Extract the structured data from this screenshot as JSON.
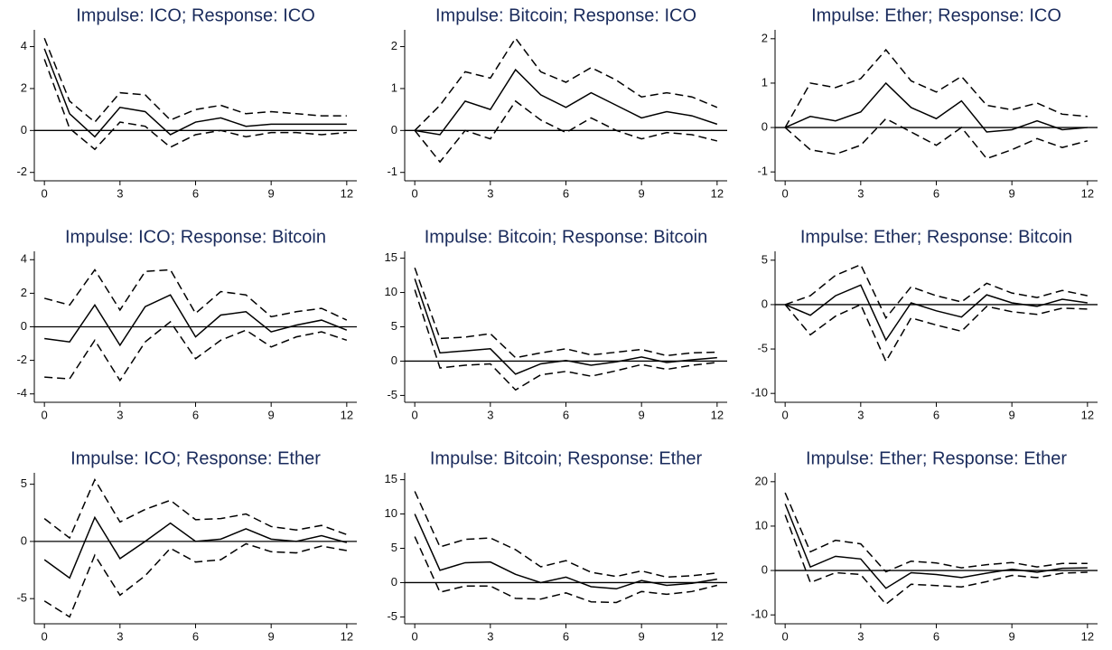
{
  "chart_data": [
    {
      "type": "line",
      "title": "Impulse: ICO; Response: ICO",
      "x": [
        0,
        1,
        2,
        3,
        4,
        5,
        6,
        7,
        8,
        9,
        10,
        11,
        12
      ],
      "xlim": [
        -0.4,
        12.4
      ],
      "xticks": [
        0,
        3,
        6,
        9,
        12
      ],
      "ylim": [
        -2.4,
        4.8
      ],
      "yticks": [
        -2,
        0,
        2,
        4
      ],
      "reference_line": 0,
      "series": [
        {
          "style": "solid",
          "color": "#000000",
          "values": [
            3.9,
            0.8,
            -0.3,
            1.1,
            0.9,
            -0.2,
            0.4,
            0.6,
            0.2,
            0.3,
            0.3,
            0.3,
            0.3
          ]
        },
        {
          "style": "dashed",
          "color": "#000000",
          "values": [
            4.4,
            1.4,
            0.4,
            1.8,
            1.7,
            0.5,
            1.0,
            1.2,
            0.8,
            0.9,
            0.8,
            0.7,
            0.7
          ]
        },
        {
          "style": "dashed",
          "color": "#000000",
          "values": [
            3.4,
            0.1,
            -0.9,
            0.4,
            0.2,
            -0.8,
            -0.2,
            0.0,
            -0.3,
            -0.1,
            -0.1,
            -0.2,
            -0.1
          ]
        }
      ]
    },
    {
      "type": "line",
      "title": "Impulse: Bitcoin; Response: ICO",
      "x": [
        0,
        1,
        2,
        3,
        4,
        5,
        6,
        7,
        8,
        9,
        10,
        11,
        12
      ],
      "xlim": [
        -0.4,
        12.4
      ],
      "xticks": [
        0,
        3,
        6,
        9,
        12
      ],
      "ylim": [
        -1.2,
        2.4
      ],
      "yticks": [
        -1,
        0,
        1,
        2
      ],
      "reference_line": 0,
      "series": [
        {
          "style": "solid",
          "color": "#000000",
          "values": [
            0,
            -0.1,
            0.7,
            0.5,
            1.45,
            0.85,
            0.55,
            0.9,
            0.6,
            0.3,
            0.45,
            0.35,
            0.15
          ]
        },
        {
          "style": "dashed",
          "color": "#000000",
          "values": [
            0,
            0.6,
            1.4,
            1.25,
            2.2,
            1.4,
            1.15,
            1.5,
            1.2,
            0.8,
            0.9,
            0.8,
            0.55
          ]
        },
        {
          "style": "dashed",
          "color": "#000000",
          "values": [
            0,
            -0.75,
            0.0,
            -0.2,
            0.7,
            0.25,
            -0.05,
            0.3,
            0.0,
            -0.2,
            -0.05,
            -0.1,
            -0.25
          ]
        }
      ]
    },
    {
      "type": "line",
      "title": "Impulse: Ether; Response: ICO",
      "x": [
        0,
        1,
        2,
        3,
        4,
        5,
        6,
        7,
        8,
        9,
        10,
        11,
        12
      ],
      "xlim": [
        -0.4,
        12.4
      ],
      "xticks": [
        0,
        3,
        6,
        9,
        12
      ],
      "ylim": [
        -1.2,
        2.2
      ],
      "yticks": [
        -1,
        0,
        1,
        2
      ],
      "reference_line": 0,
      "series": [
        {
          "style": "solid",
          "color": "#000000",
          "values": [
            0,
            0.25,
            0.15,
            0.35,
            1.0,
            0.45,
            0.2,
            0.6,
            -0.1,
            -0.05,
            0.15,
            -0.05,
            0.0
          ]
        },
        {
          "style": "dashed",
          "color": "#000000",
          "values": [
            0,
            1.0,
            0.9,
            1.1,
            1.75,
            1.05,
            0.8,
            1.15,
            0.5,
            0.4,
            0.55,
            0.3,
            0.25
          ]
        },
        {
          "style": "dashed",
          "color": "#000000",
          "values": [
            0,
            -0.5,
            -0.6,
            -0.4,
            0.2,
            -0.1,
            -0.4,
            0.0,
            -0.7,
            -0.5,
            -0.25,
            -0.45,
            -0.3
          ]
        }
      ]
    },
    {
      "type": "line",
      "title": "Impulse: ICO; Response: Bitcoin",
      "x": [
        0,
        1,
        2,
        3,
        4,
        5,
        6,
        7,
        8,
        9,
        10,
        11,
        12
      ],
      "xlim": [
        -0.4,
        12.4
      ],
      "xticks": [
        0,
        3,
        6,
        9,
        12
      ],
      "ylim": [
        -4.5,
        4.5
      ],
      "yticks": [
        -4,
        -2,
        0,
        2,
        4
      ],
      "reference_line": 0,
      "series": [
        {
          "style": "solid",
          "color": "#000000",
          "values": [
            -0.7,
            -0.9,
            1.3,
            -1.1,
            1.2,
            1.9,
            -0.6,
            0.7,
            0.9,
            -0.3,
            0.1,
            0.4,
            -0.2
          ]
        },
        {
          "style": "dashed",
          "color": "#000000",
          "values": [
            1.7,
            1.3,
            3.4,
            1.0,
            3.3,
            3.4,
            0.8,
            2.1,
            1.9,
            0.6,
            0.9,
            1.1,
            0.4
          ]
        },
        {
          "style": "dashed",
          "color": "#000000",
          "values": [
            -3.0,
            -3.1,
            -0.8,
            -3.2,
            -0.9,
            0.3,
            -1.9,
            -0.8,
            -0.2,
            -1.2,
            -0.6,
            -0.3,
            -0.8
          ]
        }
      ]
    },
    {
      "type": "line",
      "title": "Impulse: Bitcoin; Response: Bitcoin",
      "x": [
        0,
        1,
        2,
        3,
        4,
        5,
        6,
        7,
        8,
        9,
        10,
        11,
        12
      ],
      "xlim": [
        -0.4,
        12.4
      ],
      "xticks": [
        0,
        3,
        6,
        9,
        12
      ],
      "ylim": [
        -6,
        16
      ],
      "yticks": [
        -5,
        0,
        5,
        10,
        15
      ],
      "reference_line": 0,
      "series": [
        {
          "style": "solid",
          "color": "#000000",
          "values": [
            12,
            1.2,
            1.5,
            1.8,
            -1.9,
            -0.4,
            0.1,
            -0.6,
            -0.1,
            0.6,
            -0.2,
            0.2,
            0.5
          ]
        },
        {
          "style": "dashed",
          "color": "#000000",
          "values": [
            13.6,
            3.3,
            3.5,
            4.0,
            0.5,
            1.2,
            1.8,
            0.9,
            1.3,
            1.7,
            0.8,
            1.2,
            1.3
          ]
        },
        {
          "style": "dashed",
          "color": "#000000",
          "values": [
            10.4,
            -1.0,
            -0.6,
            -0.4,
            -4.2,
            -2.0,
            -1.5,
            -2.2,
            -1.4,
            -0.5,
            -1.2,
            -0.6,
            -0.2
          ]
        }
      ]
    },
    {
      "type": "line",
      "title": "Impulse: Ether; Response: Bitcoin",
      "x": [
        0,
        1,
        2,
        3,
        4,
        5,
        6,
        7,
        8,
        9,
        10,
        11,
        12
      ],
      "xlim": [
        -0.4,
        12.4
      ],
      "xticks": [
        0,
        3,
        6,
        9,
        12
      ],
      "ylim": [
        -11,
        6
      ],
      "yticks": [
        -10,
        -5,
        0,
        5
      ],
      "reference_line": 0,
      "series": [
        {
          "style": "solid",
          "color": "#000000",
          "values": [
            0,
            -1.2,
            1.0,
            2.2,
            -4.0,
            0.2,
            -0.7,
            -1.4,
            1.1,
            0.2,
            -0.2,
            0.6,
            0.2
          ]
        },
        {
          "style": "dashed",
          "color": "#000000",
          "values": [
            0,
            1.0,
            3.3,
            4.5,
            -1.5,
            2.0,
            1.0,
            0.3,
            2.4,
            1.3,
            0.8,
            1.6,
            1.0
          ]
        },
        {
          "style": "dashed",
          "color": "#000000",
          "values": [
            0,
            -3.4,
            -1.3,
            0.0,
            -6.4,
            -1.5,
            -2.3,
            -3.0,
            -0.2,
            -0.8,
            -1.1,
            -0.4,
            -0.5
          ]
        }
      ]
    },
    {
      "type": "line",
      "title": "Impulse: ICO; Response: Ether",
      "x": [
        0,
        1,
        2,
        3,
        4,
        5,
        6,
        7,
        8,
        9,
        10,
        11,
        12
      ],
      "xlim": [
        -0.4,
        12.4
      ],
      "xticks": [
        0,
        3,
        6,
        9,
        12
      ],
      "ylim": [
        -7.2,
        6
      ],
      "yticks": [
        -5,
        0,
        5
      ],
      "reference_line": 0,
      "series": [
        {
          "style": "solid",
          "color": "#000000",
          "values": [
            -1.6,
            -3.2,
            2.1,
            -1.5,
            0.0,
            1.6,
            0.0,
            0.2,
            1.1,
            0.2,
            0.0,
            0.5,
            -0.1
          ]
        },
        {
          "style": "dashed",
          "color": "#000000",
          "values": [
            2.0,
            0.3,
            5.4,
            1.7,
            2.8,
            3.6,
            1.9,
            2.0,
            2.4,
            1.3,
            1.0,
            1.4,
            0.6
          ]
        },
        {
          "style": "dashed",
          "color": "#000000",
          "values": [
            -5.2,
            -6.6,
            -1.2,
            -4.7,
            -3.0,
            -0.6,
            -1.8,
            -1.6,
            -0.2,
            -0.9,
            -1.0,
            -0.4,
            -0.8
          ]
        }
      ]
    },
    {
      "type": "line",
      "title": "Impulse: Bitcoin; Response: Ether",
      "x": [
        0,
        1,
        2,
        3,
        4,
        5,
        6,
        7,
        8,
        9,
        10,
        11,
        12
      ],
      "xlim": [
        -0.4,
        12.4
      ],
      "xticks": [
        0,
        3,
        6,
        9,
        12
      ],
      "ylim": [
        -6,
        16
      ],
      "yticks": [
        -5,
        0,
        5,
        10,
        15
      ],
      "reference_line": 0,
      "series": [
        {
          "style": "solid",
          "color": "#000000",
          "values": [
            10,
            1.8,
            2.9,
            3.0,
            1.2,
            0.0,
            0.8,
            -0.6,
            -0.9,
            0.3,
            -0.4,
            -0.1,
            0.5
          ]
        },
        {
          "style": "dashed",
          "color": "#000000",
          "values": [
            13.3,
            5.2,
            6.3,
            6.5,
            4.8,
            2.3,
            3.2,
            1.5,
            0.9,
            1.7,
            0.8,
            1.0,
            1.4
          ]
        },
        {
          "style": "dashed",
          "color": "#000000",
          "values": [
            6.7,
            -1.4,
            -0.5,
            -0.5,
            -2.3,
            -2.4,
            -1.5,
            -2.8,
            -2.9,
            -1.3,
            -1.7,
            -1.3,
            -0.4
          ]
        }
      ]
    },
    {
      "type": "line",
      "title": "Impulse: Ether; Response: Ether",
      "x": [
        0,
        1,
        2,
        3,
        4,
        5,
        6,
        7,
        8,
        9,
        10,
        11,
        12
      ],
      "xlim": [
        -0.4,
        12.4
      ],
      "xticks": [
        0,
        3,
        6,
        9,
        12
      ],
      "ylim": [
        -12,
        22
      ],
      "yticks": [
        -10,
        0,
        10,
        20
      ],
      "reference_line": 0,
      "series": [
        {
          "style": "solid",
          "color": "#000000",
          "values": [
            15,
            0.8,
            3.2,
            2.6,
            -4.0,
            -0.5,
            -0.9,
            -1.6,
            -0.6,
            0.3,
            -0.4,
            0.5,
            0.6
          ]
        },
        {
          "style": "dashed",
          "color": "#000000",
          "values": [
            17.5,
            4.2,
            6.8,
            6.0,
            -0.3,
            2.1,
            1.7,
            0.6,
            1.3,
            1.8,
            0.8,
            1.6,
            1.6
          ]
        },
        {
          "style": "dashed",
          "color": "#000000",
          "values": [
            12.5,
            -2.7,
            -0.5,
            -0.9,
            -7.6,
            -3.1,
            -3.4,
            -3.7,
            -2.5,
            -1.1,
            -1.6,
            -0.6,
            -0.4
          ]
        }
      ]
    }
  ]
}
